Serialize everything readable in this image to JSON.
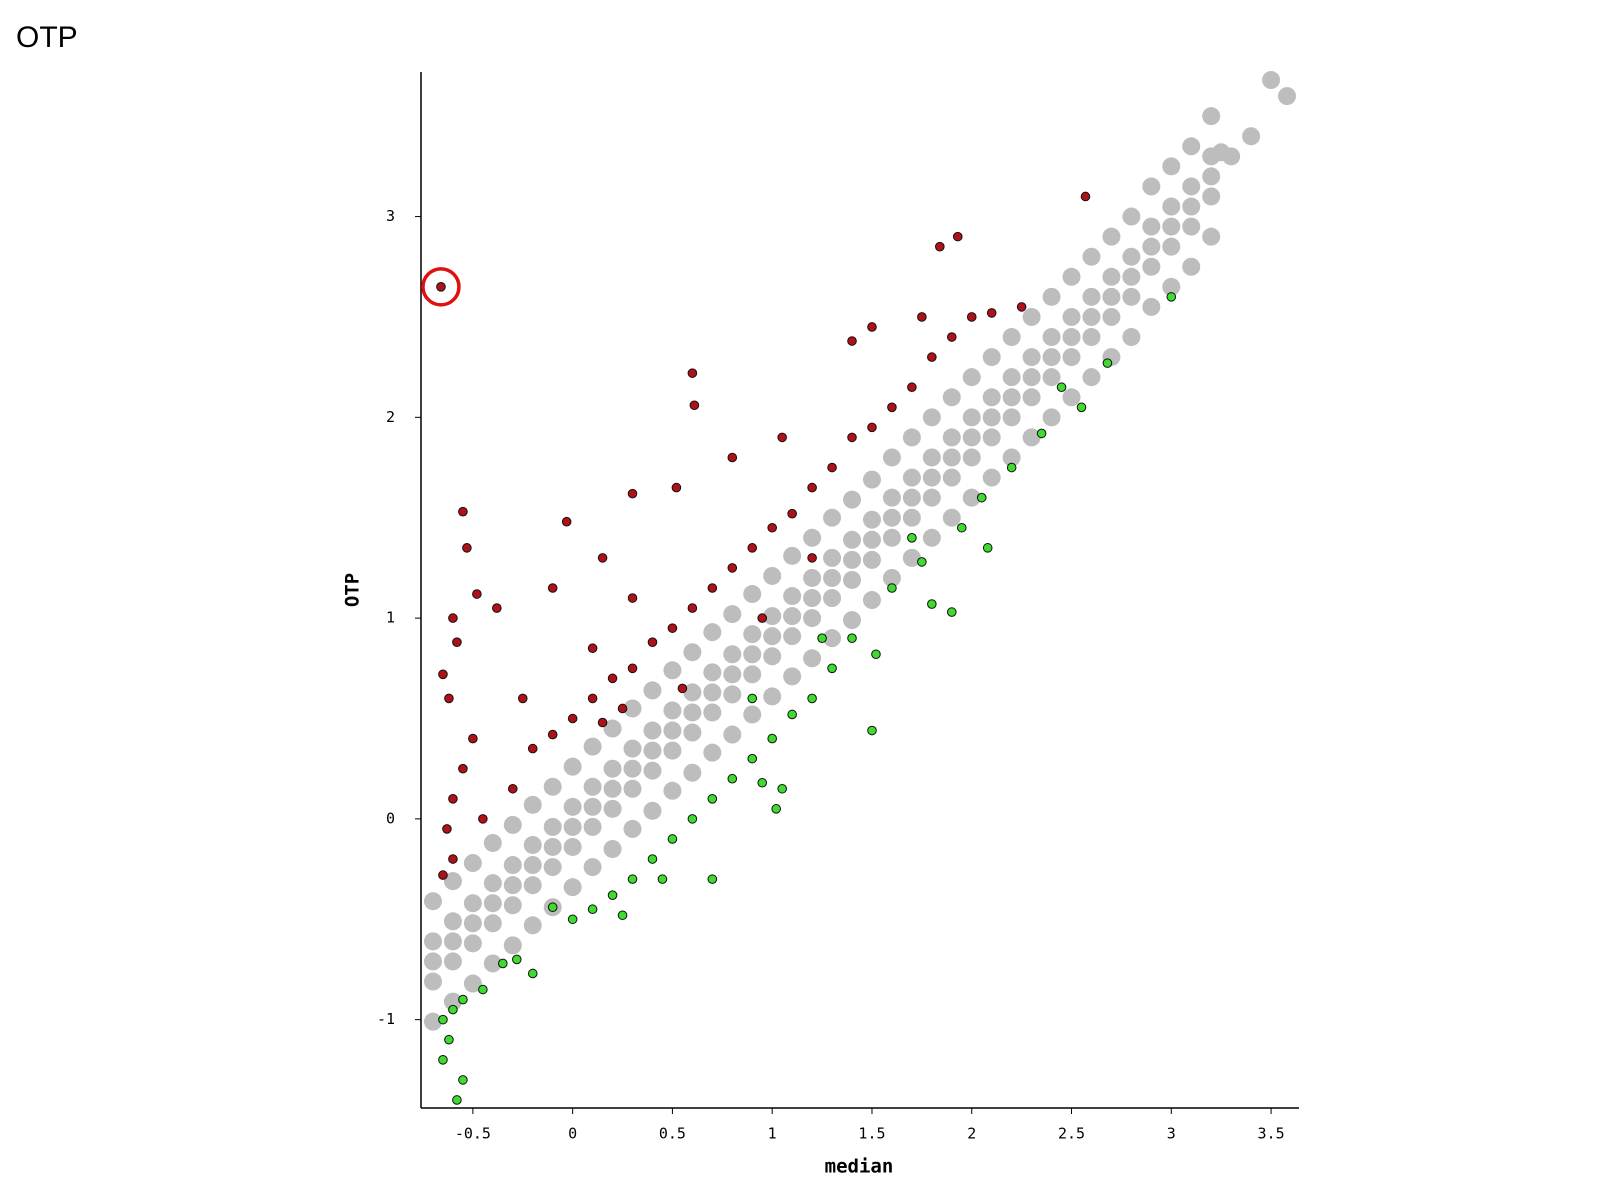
{
  "chart_data": {
    "type": "scatter",
    "title": "OTP",
    "x_label": "median",
    "y_label": "OTP",
    "xlim": [
      -0.76,
      3.64
    ],
    "ylim": [
      -1.44,
      3.72
    ],
    "xticks": [
      -0.5,
      0,
      0.5,
      1,
      1.5,
      2,
      2.5,
      3,
      3.5
    ],
    "yticks": [
      -1,
      0,
      1,
      2,
      3
    ],
    "grid": false,
    "series": [
      {
        "color": "#bdbdbd",
        "x": [
          -0.7,
          -0.6,
          -0.5,
          -0.4,
          -0.3,
          -0.2,
          -0.1,
          0,
          0.1,
          0.2,
          0.3,
          0.4,
          0.5,
          0.6,
          0.7,
          0.8,
          0.9,
          1,
          1.1,
          1.2,
          1.3,
          1.4,
          1.5,
          1.6,
          1.7,
          1.8,
          1.9,
          2,
          2.1,
          2.2,
          2.3,
          2.4,
          2.5,
          2.6,
          2.7,
          2.8,
          2.9,
          3,
          3.1,
          3.2,
          -0.7,
          -0.6,
          -0.5,
          -0.4,
          -0.3,
          -0.2,
          -0.1,
          0,
          0.1,
          0.2,
          0.3,
          0.4,
          0.5,
          0.6,
          0.7,
          0.8,
          0.9,
          1,
          1.1,
          1.2,
          1.3,
          1.4,
          1.5,
          1.6,
          1.7,
          1.8,
          1.9,
          2,
          2.1,
          2.2,
          2.3,
          2.4,
          2.5,
          2.6,
          2.7,
          2.8,
          2.9,
          3,
          3.1,
          3.2,
          -0.7,
          -0.6,
          -0.5,
          -0.4,
          -0.3,
          -0.2,
          -0.1,
          0,
          0.1,
          0.2,
          0.3,
          0.4,
          0.5,
          0.6,
          0.7,
          0.8,
          0.9,
          1,
          1.1,
          1.2,
          1.3,
          1.4,
          1.5,
          1.6,
          1.7,
          1.8,
          1.9,
          2,
          2.1,
          2.2,
          2.3,
          2.4,
          2.5,
          2.6,
          2.7,
          2.8,
          2.9,
          3,
          3.1,
          3.2,
          -0.7,
          -0.6,
          -0.5,
          -0.4,
          -0.3,
          -0.2,
          -0.1,
          0,
          0.1,
          0.2,
          0.3,
          0.4,
          0.5,
          0.6,
          0.7,
          0.8,
          0.9,
          1,
          1.1,
          1.2,
          1.3,
          1.4,
          1.5,
          1.6,
          1.7,
          1.8,
          1.9,
          2,
          2.1,
          2.2,
          2.3,
          2.4,
          2.5,
          2.6,
          2.7,
          2.8,
          2.9,
          3,
          3.1,
          3.2,
          -0.7,
          -0.6,
          -0.5,
          -0.4,
          -0.3,
          -0.2,
          -0.1,
          0,
          0.1,
          0.2,
          0.3,
          0.4,
          0.5,
          0.6,
          0.7,
          0.8,
          0.9,
          1,
          1.1,
          1.2,
          1.3,
          1.4,
          1.5,
          1.6,
          1.7,
          1.8,
          1.9,
          2,
          2.1,
          2.2,
          2.3,
          2.4,
          2.5,
          2.6,
          2.7,
          2.8,
          2.9,
          3,
          3.1,
          3.2,
          3.25,
          3.3,
          3.4,
          3.5,
          3.58
        ],
        "y": [
          -0.41,
          -0.31,
          -0.22,
          -0.12,
          -0.03,
          0.07,
          0.16,
          0.26,
          0.36,
          0.45,
          0.55,
          0.64,
          0.74,
          0.83,
          0.93,
          1.02,
          1.12,
          1.21,
          1.31,
          1.4,
          1.5,
          1.59,
          1.69,
          1.8,
          1.9,
          2,
          2.1,
          2.2,
          2.3,
          2.4,
          2.5,
          2.6,
          2.7,
          2.8,
          2.9,
          3,
          3.15,
          3.25,
          3.35,
          3.5,
          -0.61,
          -0.51,
          -0.42,
          -0.32,
          -0.23,
          -0.13,
          -0.04,
          0.06,
          0.16,
          0.25,
          0.35,
          0.44,
          0.54,
          0.63,
          0.73,
          0.82,
          0.92,
          1.01,
          1.11,
          1.2,
          1.3,
          1.39,
          1.49,
          1.6,
          1.7,
          1.8,
          1.9,
          2,
          2.1,
          2.2,
          2.3,
          2.4,
          2.5,
          2.6,
          2.7,
          2.8,
          2.95,
          3.05,
          3.15,
          3.3,
          -0.71,
          -0.61,
          -0.52,
          -0.42,
          -0.33,
          -0.23,
          -0.14,
          -0.04,
          0.06,
          0.15,
          0.25,
          0.34,
          0.44,
          0.53,
          0.63,
          0.72,
          0.82,
          0.91,
          1.01,
          1.1,
          1.2,
          1.29,
          1.39,
          1.5,
          1.6,
          1.7,
          1.8,
          1.9,
          2,
          2.1,
          2.2,
          2.3,
          2.4,
          2.5,
          2.6,
          2.7,
          2.85,
          2.95,
          3.05,
          3.2,
          -0.81,
          -0.71,
          -0.62,
          -0.52,
          -0.43,
          -0.33,
          -0.24,
          -0.14,
          -0.04,
          0.05,
          0.15,
          0.24,
          0.34,
          0.43,
          0.53,
          0.62,
          0.72,
          0.81,
          0.91,
          1,
          1.1,
          1.19,
          1.29,
          1.4,
          1.5,
          1.6,
          1.7,
          1.8,
          1.9,
          2,
          2.1,
          2.2,
          2.3,
          2.4,
          2.5,
          2.6,
          2.75,
          2.85,
          2.95,
          3.1,
          -1.01,
          -0.91,
          -0.82,
          -0.72,
          -0.63,
          -0.53,
          -0.44,
          -0.34,
          -0.24,
          -0.15,
          -0.05,
          0.04,
          0.14,
          0.23,
          0.33,
          0.42,
          0.52,
          0.61,
          0.71,
          0.8,
          0.9,
          0.99,
          1.09,
          1.2,
          1.3,
          1.4,
          1.5,
          1.6,
          1.7,
          1.8,
          1.9,
          2,
          2.1,
          2.2,
          2.3,
          2.4,
          2.55,
          2.65,
          2.75,
          2.9,
          3.32,
          3.3,
          3.4,
          3.68,
          3.6
        ]
      },
      {
        "color": "#b01018",
        "x": [
          -0.66,
          1.84,
          1.93,
          2.57,
          0.6,
          0.61,
          0.52,
          0.3,
          -0.03,
          -0.55,
          -0.53,
          -0.48,
          -0.38,
          -0.6,
          -0.58,
          -0.65,
          -0.62,
          -0.5,
          -0.55,
          -0.6,
          -0.63,
          -0.6,
          -0.65,
          -0.45,
          -0.3,
          -0.2,
          -0.1,
          0,
          0.1,
          0.2,
          0.3,
          0.4,
          0.5,
          0.6,
          0.7,
          0.8,
          0.9,
          1,
          1.1,
          1.2,
          1.3,
          1.4,
          1.5,
          1.6,
          1.7,
          1.8,
          1.9,
          2,
          2.1,
          1.4,
          1.5,
          1.75,
          0.8,
          1.05,
          0.15,
          -0.1,
          0.3,
          0.1,
          -0.25,
          0.55,
          0.95,
          1.2,
          2.25,
          0.15,
          0.25
        ],
        "y": [
          2.65,
          2.85,
          2.9,
          3.1,
          2.22,
          2.06,
          1.65,
          1.62,
          1.48,
          1.53,
          1.35,
          1.12,
          1.05,
          1,
          0.88,
          0.72,
          0.6,
          0.4,
          0.25,
          0.1,
          -0.05,
          -0.2,
          -0.28,
          0,
          0.15,
          0.35,
          0.42,
          0.5,
          0.6,
          0.7,
          0.75,
          0.88,
          0.95,
          1.05,
          1.15,
          1.25,
          1.35,
          1.45,
          1.52,
          1.65,
          1.75,
          1.9,
          1.95,
          2.05,
          2.15,
          2.3,
          2.4,
          2.5,
          2.52,
          2.38,
          2.45,
          2.5,
          1.8,
          1.9,
          1.3,
          1.15,
          1.1,
          0.85,
          0.6,
          0.65,
          1,
          1.3,
          2.55,
          0.48,
          0.55
        ]
      },
      {
        "color": "#3ddc2e",
        "x": [
          3,
          2.68,
          2.55,
          2.45,
          2.35,
          2.2,
          2.05,
          1.95,
          2.08,
          1.9,
          1.8,
          1.75,
          1.7,
          1.6,
          1.52,
          1.5,
          1.4,
          1.3,
          1.2,
          1.1,
          1,
          0.9,
          0.8,
          0.7,
          0.6,
          0.5,
          0.4,
          0.3,
          0.2,
          0.1,
          0,
          -0.1,
          0.25,
          -0.2,
          -0.28,
          -0.35,
          -0.45,
          -0.55,
          -0.6,
          -0.65,
          -0.62,
          -0.65,
          -0.55,
          -0.58,
          0.45,
          0.7,
          1.05,
          1.02,
          0.9,
          1.25,
          0.95
        ],
        "y": [
          2.6,
          2.27,
          2.05,
          2.15,
          1.92,
          1.75,
          1.6,
          1.45,
          1.35,
          1.03,
          1.07,
          1.28,
          1.4,
          1.15,
          0.82,
          0.44,
          0.9,
          0.75,
          0.6,
          0.52,
          0.4,
          0.3,
          0.2,
          0.1,
          0,
          -0.1,
          -0.2,
          -0.3,
          -0.38,
          -0.45,
          -0.5,
          -0.44,
          -0.48,
          -0.77,
          -0.7,
          -0.72,
          -0.85,
          -0.9,
          -0.95,
          -1,
          -1.1,
          -1.2,
          -1.3,
          -1.4,
          -0.3,
          -0.3,
          0.15,
          0.05,
          0.6,
          0.9,
          0.18
        ]
      }
    ]
  }
}
